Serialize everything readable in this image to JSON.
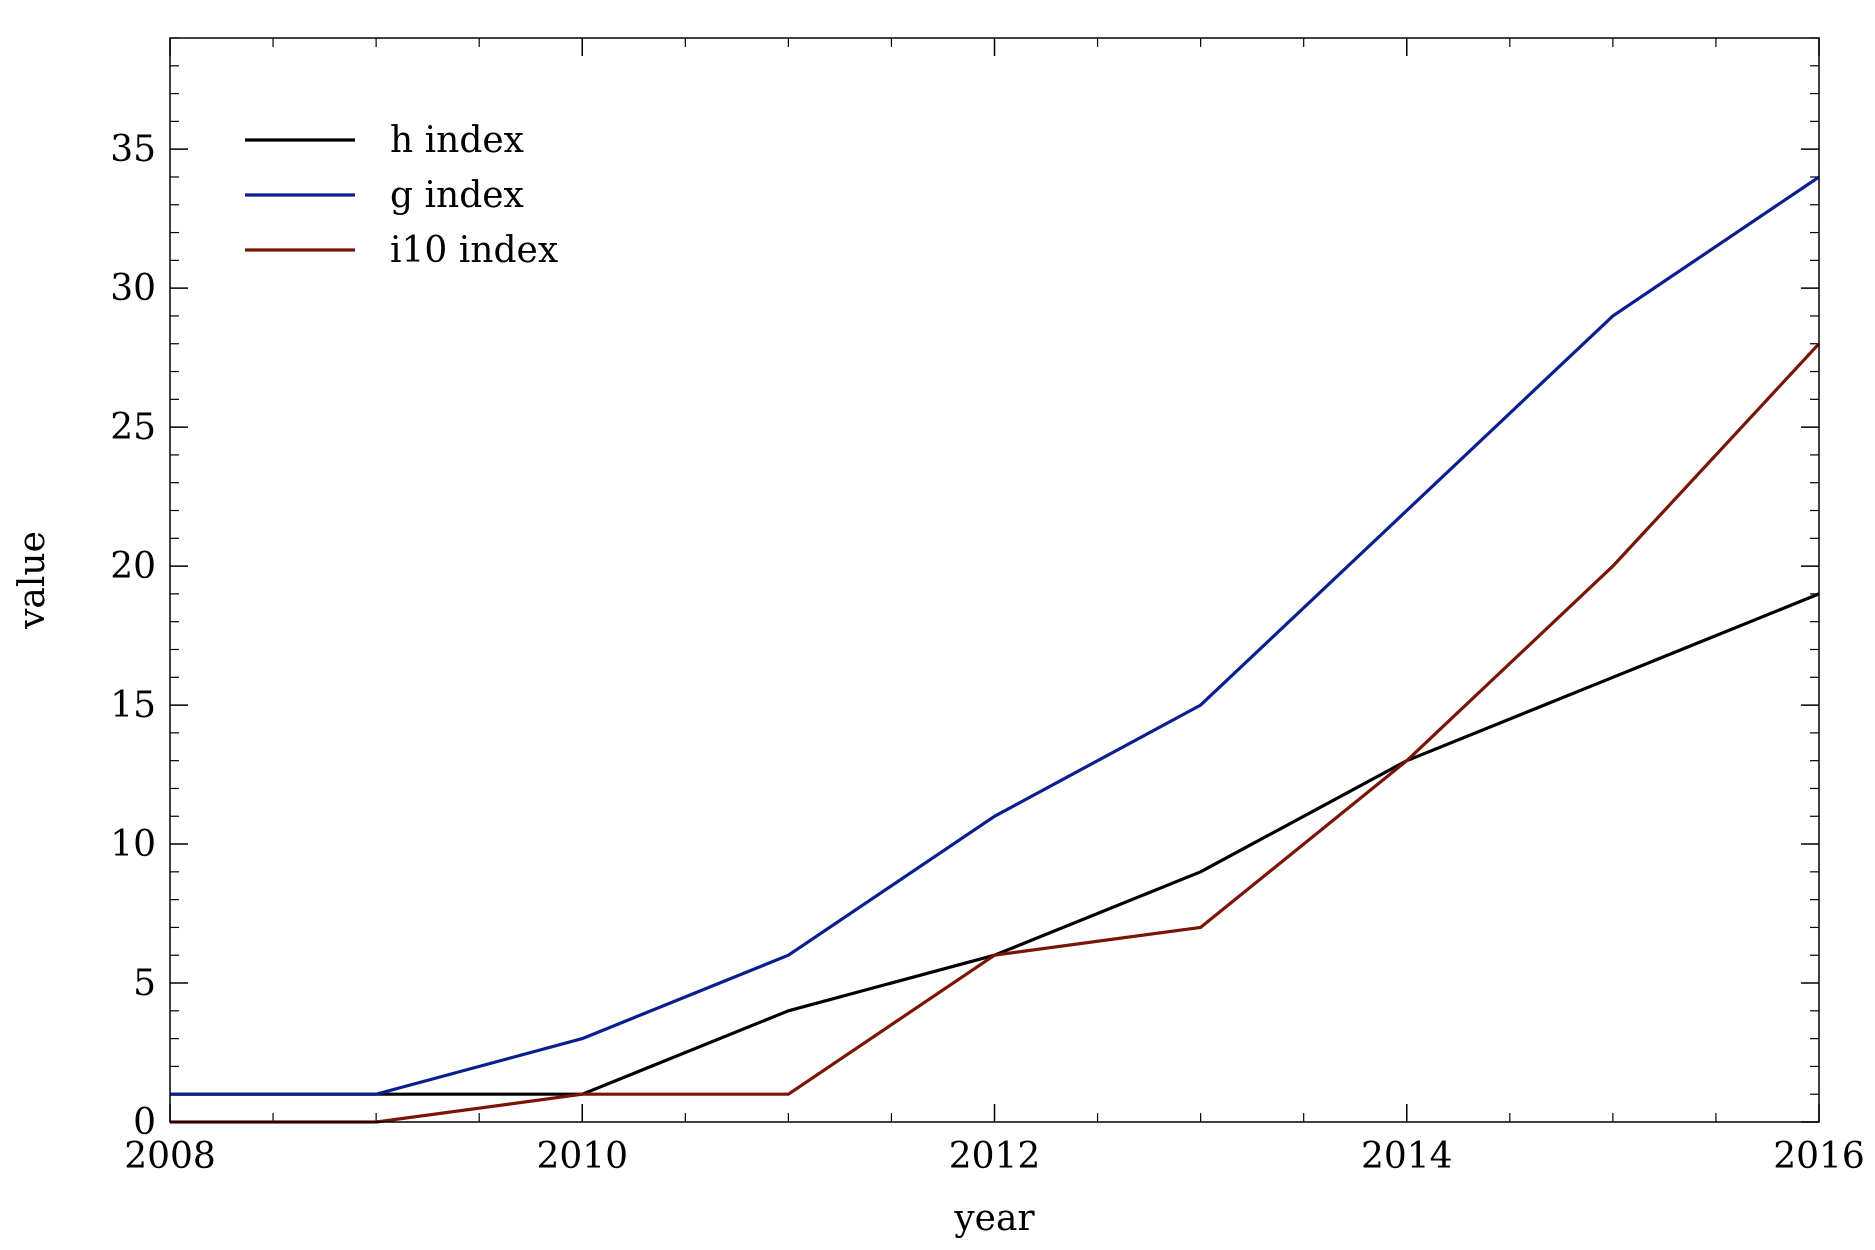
{
  "chart_data": {
    "type": "line",
    "title": "",
    "xlabel": "year",
    "ylabel": "value",
    "xlim": [
      2008,
      2016
    ],
    "ylim": [
      0,
      39
    ],
    "x_ticks": [
      2008,
      2010,
      2012,
      2014,
      2016
    ],
    "y_ticks": [
      0,
      5,
      10,
      15,
      20,
      25,
      30,
      35
    ],
    "x_ticks_minor_step": 0.5,
    "y_ticks_minor_step": 1,
    "grid": false,
    "legend_position": "top-left",
    "x": [
      2008,
      2009,
      2010,
      2011,
      2012,
      2013,
      2014,
      2015,
      2016
    ],
    "series": [
      {
        "name": "h index",
        "color": "#000000",
        "values": [
          1,
          1,
          1,
          4,
          6,
          9,
          13,
          16,
          19
        ]
      },
      {
        "name": "g index",
        "color": "#0a1f8f",
        "values": [
          1,
          1,
          3,
          6,
          11,
          15,
          22,
          29,
          34
        ]
      },
      {
        "name": "i10 index",
        "color": "#7a1505",
        "values": [
          0,
          0,
          1,
          1,
          6,
          7,
          13,
          20,
          28
        ]
      }
    ]
  }
}
